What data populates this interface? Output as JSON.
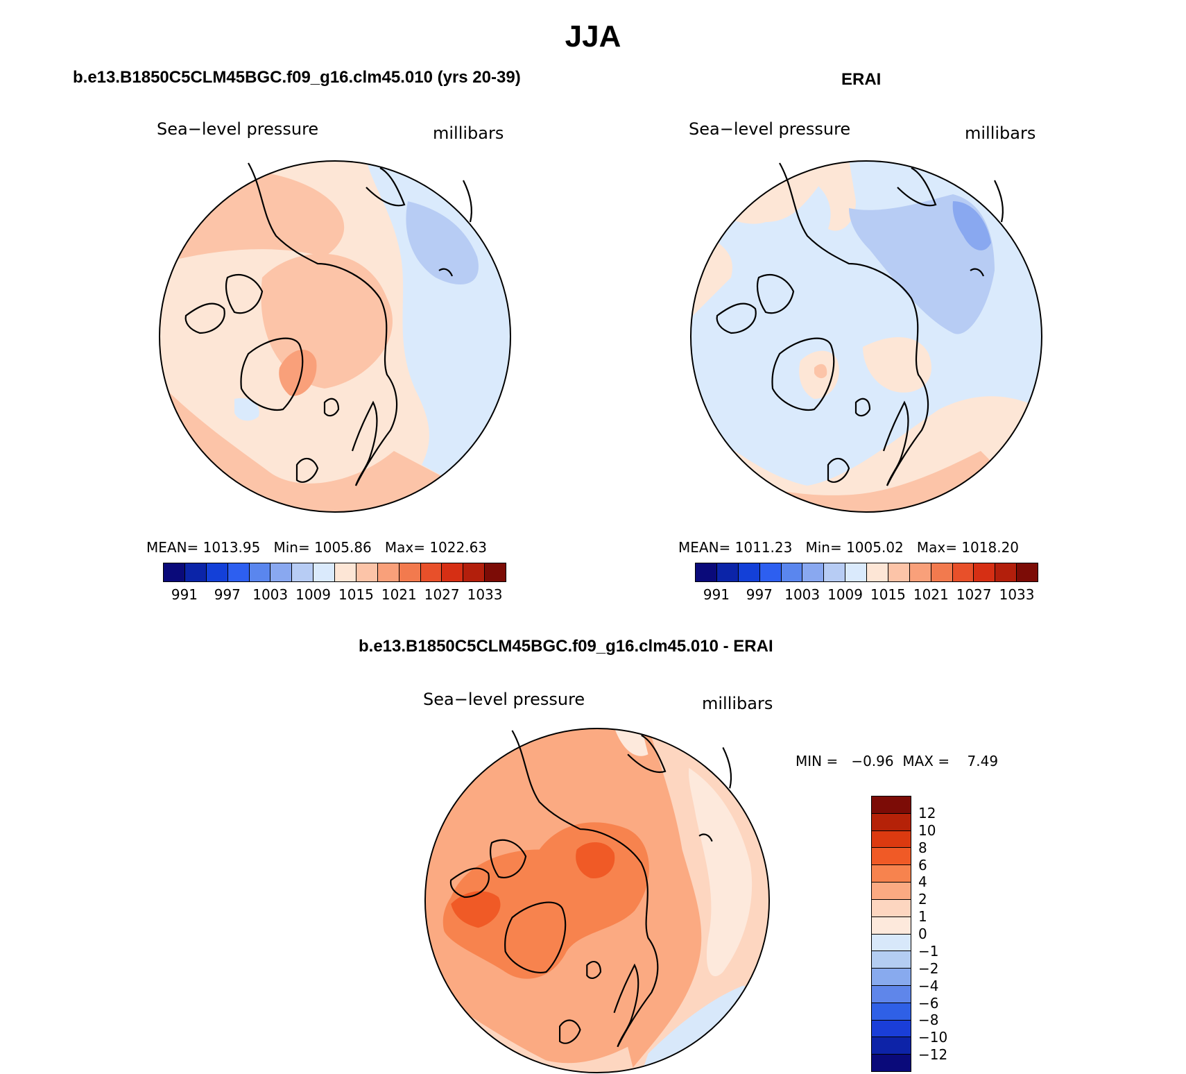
{
  "title": "JJA",
  "panels": [
    {
      "id": "model",
      "title": "b.e13.B1850C5CLM45BGC.f09_g16.clm45.010 (yrs 20-39)",
      "variable": "Sea−level pressure",
      "units": "millibars",
      "stats": {
        "mean_label": "MEAN=",
        "mean": "1013.95",
        "min_label": "Min=",
        "min": "1005.86",
        "max_label": "Max=",
        "max": "1022.63"
      }
    },
    {
      "id": "obs",
      "title": "ERAI",
      "variable": "Sea−level pressure",
      "units": "millibars",
      "stats": {
        "mean_label": "MEAN=",
        "mean": "1011.23",
        "min_label": "Min=",
        "min": "1005.02",
        "max_label": "Max=",
        "max": "1018.20"
      }
    },
    {
      "id": "diff",
      "title": "b.e13.B1850C5CLM45BGC.f09_g16.clm45.010 - ERAI",
      "variable": "Sea−level pressure",
      "units": "millibars",
      "stats": {
        "min_label": "MIN =",
        "min": "−0.96",
        "max_label": "MAX =",
        "max": "7.49"
      }
    }
  ],
  "abs_colorbar": {
    "colors": [
      "#0a0a7a",
      "#0b24a8",
      "#1340d8",
      "#2d5ff0",
      "#5a86ee",
      "#89a8f0",
      "#b7ccf4",
      "#daeafc",
      "#fde6d6",
      "#fcc4a8",
      "#f9a07a",
      "#f27a4e",
      "#e8502a",
      "#d62f14",
      "#b31f0c",
      "#7c0c06"
    ],
    "tick_labels": [
      "991",
      "997",
      "1003",
      "1009",
      "1015",
      "1021",
      "1027",
      "1033"
    ]
  },
  "diff_colorbar": {
    "colors_top_to_bottom": [
      "#7c0c06",
      "#b52208",
      "#dc3a10",
      "#f05a26",
      "#f7834e",
      "#fbaa82",
      "#fdd6c0",
      "#fde9dc",
      "#d8e8fa",
      "#b4cdf2",
      "#88aaee",
      "#5f86ea",
      "#2f60e6",
      "#1a3ed8",
      "#0d23a8",
      "#0a0a7a"
    ],
    "tick_labels_top_to_bottom": [
      "12",
      "10",
      "8",
      "6",
      "4",
      "2",
      "1",
      "0",
      "−1",
      "−2",
      "−4",
      "−6",
      "−8",
      "−10",
      "−12"
    ]
  },
  "map_colors": {
    "model": {
      "base": "#fde6d6",
      "positive_1": "#fcc4a8",
      "positive_2": "#f9a07a",
      "positive_3": "#f27a4e",
      "negative_1": "#daeafc",
      "negative_2": "#b7ccf4",
      "negative_3": "#89a8f0"
    },
    "obs": {
      "base": "#daeafc",
      "positive_1": "#fde6d6",
      "positive_2": "#fcc4a8",
      "positive_3": "#f9a07a",
      "negative_1": "#b7ccf4",
      "negative_2": "#89a8f0"
    },
    "diff": {
      "base": "#fbaa82",
      "low": "#fdd6c0",
      "lowest": "#fde9dc",
      "neg": "#d8e8fa",
      "high": "#f7834e",
      "higher": "#f05a26"
    }
  }
}
